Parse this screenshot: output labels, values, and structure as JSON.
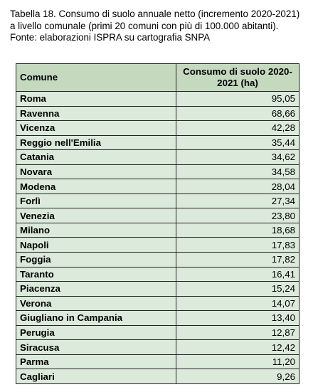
{
  "caption": {
    "line1": "Tabella 18. Consumo di suolo annuale netto (incremento 2020-2021)",
    "line2": "a livello comunale (primi 20 comuni con più di 100.000 abitanti).",
    "line3": "Fonte: elaborazioni ISPRA su cartografia SNPA"
  },
  "table": {
    "header_bg": "#c5d9bf",
    "row_bg": "#dceadb",
    "columns": [
      "Comune",
      "Consumo di suolo 2020-2021 (ha)"
    ],
    "rows": [
      {
        "comune": "Roma",
        "consumo": "95,05"
      },
      {
        "comune": "Ravenna",
        "consumo": "68,66"
      },
      {
        "comune": "Vicenza",
        "consumo": "42,28"
      },
      {
        "comune": "Reggio nell'Emilia",
        "consumo": "35,44"
      },
      {
        "comune": "Catania",
        "consumo": "34,62"
      },
      {
        "comune": "Novara",
        "consumo": "34,58"
      },
      {
        "comune": "Modena",
        "consumo": "28,04"
      },
      {
        "comune": "Forlì",
        "consumo": "27,34"
      },
      {
        "comune": "Venezia",
        "consumo": "23,80"
      },
      {
        "comune": "Milano",
        "consumo": "18,68"
      },
      {
        "comune": "Napoli",
        "consumo": "17,83"
      },
      {
        "comune": "Foggia",
        "consumo": "17,82"
      },
      {
        "comune": "Taranto",
        "consumo": "16,41"
      },
      {
        "comune": "Piacenza",
        "consumo": "15,24"
      },
      {
        "comune": "Verona",
        "consumo": "14,07"
      },
      {
        "comune": "Giugliano in Campania",
        "consumo": "13,40"
      },
      {
        "comune": "Perugia",
        "consumo": "12,87"
      },
      {
        "comune": "Siracusa",
        "consumo": "12,42"
      },
      {
        "comune": "Parma",
        "consumo": "11,20"
      },
      {
        "comune": "Cagliari",
        "consumo": "9,26"
      }
    ]
  }
}
